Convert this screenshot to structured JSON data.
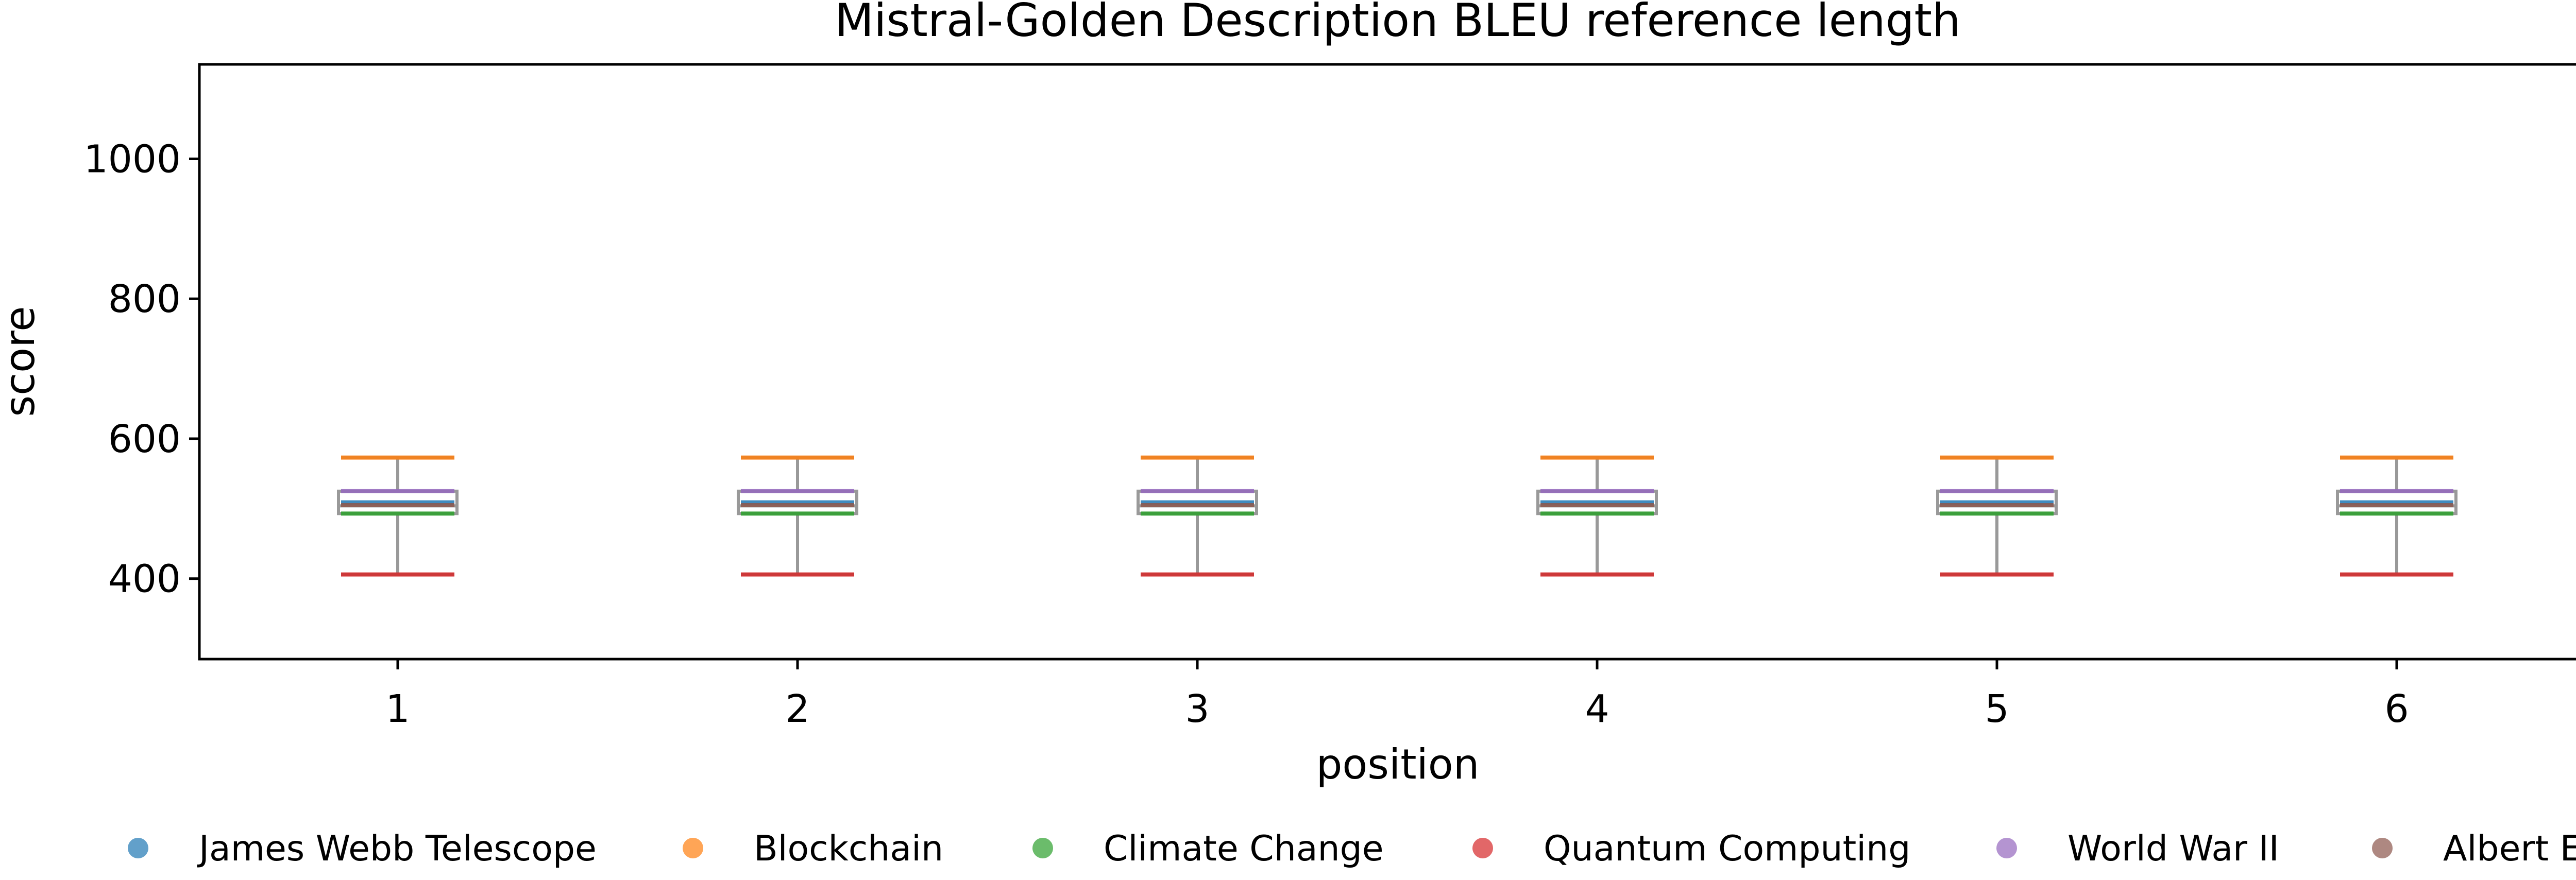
{
  "chart_data": {
    "type": "box",
    "title": "Mistral-Golden Description BLEU reference length",
    "xlabel": "position",
    "ylabel": "score",
    "x_categories": [
      "1",
      "2",
      "3",
      "4",
      "5",
      "6"
    ],
    "ylim": [
      285,
      1135
    ],
    "y_ticks": [
      "400",
      "600",
      "800",
      "1000"
    ],
    "grid": false,
    "legend_position": "bottom",
    "box_color": "#999999",
    "boxes": [
      {
        "position": "1",
        "whisker_low": 406,
        "q1": 493,
        "median": 504,
        "q3": 525,
        "whisker_high": 573
      },
      {
        "position": "2",
        "whisker_low": 406,
        "q1": 493,
        "median": 504,
        "q3": 525,
        "whisker_high": 573
      },
      {
        "position": "3",
        "whisker_low": 406,
        "q1": 493,
        "median": 504,
        "q3": 525,
        "whisker_high": 573
      },
      {
        "position": "4",
        "whisker_low": 406,
        "q1": 493,
        "median": 504,
        "q3": 525,
        "whisker_high": 573
      },
      {
        "position": "5",
        "whisker_low": 406,
        "q1": 493,
        "median": 504,
        "q3": 525,
        "whisker_high": 573
      },
      {
        "position": "6",
        "whisker_low": 406,
        "q1": 493,
        "median": 504,
        "q3": 525,
        "whisker_high": 573
      }
    ],
    "series": [
      {
        "name": "James Webb Telescope",
        "color": "#1f77b4",
        "values": [
          509,
          509,
          509,
          509,
          509,
          509
        ]
      },
      {
        "name": "Blockchain",
        "color": "#ff7f0e",
        "values": [
          573,
          573,
          573,
          573,
          573,
          573
        ]
      },
      {
        "name": "Climate Change",
        "color": "#2ca02c",
        "values": [
          493,
          493,
          493,
          493,
          493,
          493
        ]
      },
      {
        "name": "Quantum Computing",
        "color": "#d62728",
        "values": [
          406,
          406,
          406,
          406,
          406,
          406
        ]
      },
      {
        "name": "World War II",
        "color": "#9467bd",
        "values": [
          525,
          525,
          525,
          525,
          525,
          525
        ]
      },
      {
        "name": "Albert Einstein",
        "color": "#8c564b",
        "values": [
          505,
          505,
          505,
          505,
          505,
          505
        ]
      }
    ]
  }
}
